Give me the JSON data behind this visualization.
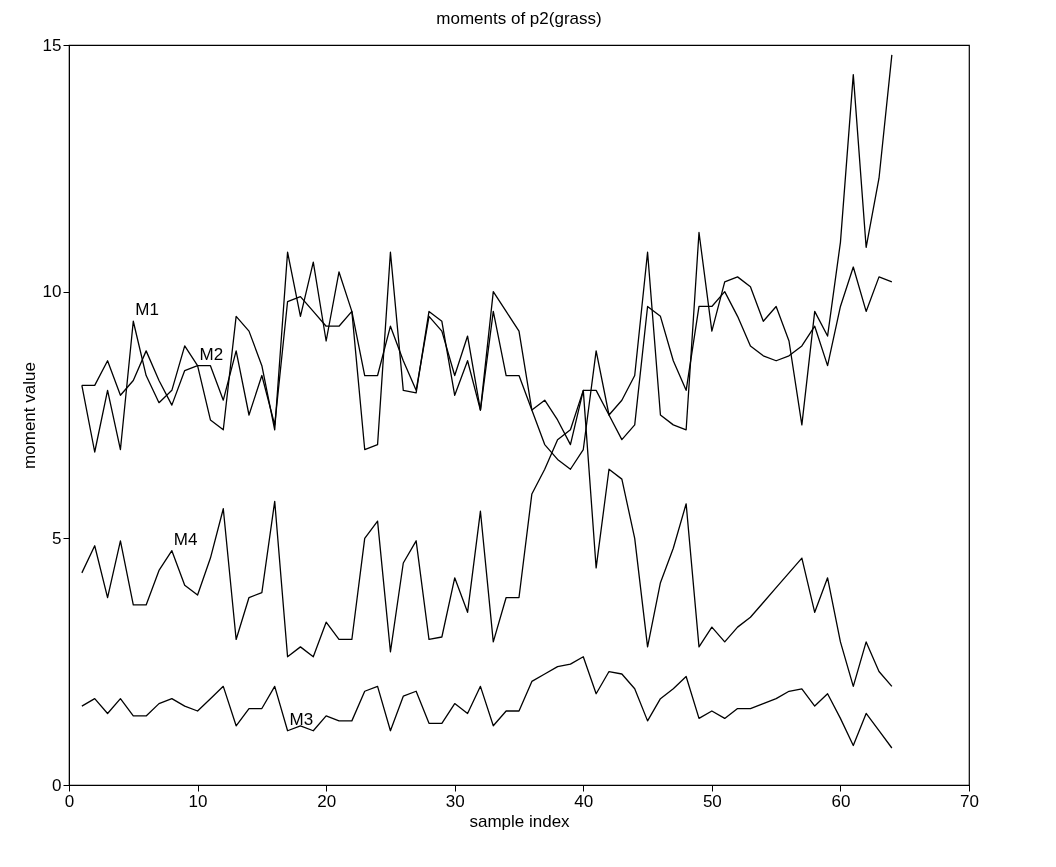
{
  "chart_data": {
    "type": "line",
    "title": "moments of p2(grass)",
    "xlabel": "sample index",
    "ylabel": "moment value",
    "x": [
      1,
      2,
      3,
      4,
      5,
      6,
      7,
      8,
      9,
      10,
      11,
      12,
      13,
      14,
      15,
      16,
      17,
      18,
      19,
      20,
      21,
      22,
      23,
      24,
      25,
      26,
      27,
      28,
      29,
      30,
      31,
      32,
      33,
      34,
      35,
      36,
      37,
      38,
      39,
      40,
      41,
      42,
      43,
      44,
      45,
      46,
      47,
      48,
      49,
      50,
      51,
      52,
      53,
      54,
      55,
      56,
      57,
      58,
      59,
      60,
      61,
      62,
      63,
      64
    ],
    "series": [
      {
        "name": "M1",
        "color": "#000000",
        "values": [
          8.1,
          6.75,
          8.0,
          6.8,
          9.4,
          8.3,
          7.75,
          8.0,
          8.9,
          8.5,
          7.4,
          7.2,
          9.5,
          9.2,
          8.5,
          7.2,
          10.8,
          9.5,
          10.6,
          9.0,
          10.4,
          9.6,
          6.8,
          6.9,
          10.8,
          8.0,
          7.95,
          9.6,
          9.4,
          7.9,
          8.6,
          7.6,
          10.0,
          9.6,
          9.2,
          7.6,
          6.9,
          6.6,
          6.4,
          6.8,
          8.8,
          7.5,
          7.8,
          8.3,
          10.8,
          7.5,
          7.3,
          7.2,
          11.2,
          9.2,
          10.2,
          10.3,
          10.1,
          9.4,
          9.7,
          9.0,
          7.3,
          9.6,
          9.1,
          11.0,
          14.4,
          10.9,
          12.3,
          14.8
        ]
      },
      {
        "name": "M2",
        "color": "#000000",
        "values": [
          8.1,
          8.1,
          8.6,
          7.9,
          8.2,
          8.8,
          8.2,
          7.7,
          8.4,
          8.5,
          8.5,
          7.8,
          8.8,
          7.5,
          8.3,
          7.3,
          9.8,
          9.9,
          9.6,
          9.3,
          9.3,
          9.6,
          8.3,
          8.3,
          9.3,
          8.6,
          8.0,
          9.5,
          9.2,
          8.3,
          9.1,
          7.6,
          9.6,
          8.3,
          8.3,
          7.6,
          7.8,
          7.4,
          6.9,
          8.0,
          8.0,
          7.5,
          7.0,
          7.3,
          9.7,
          9.5,
          8.6,
          8.0,
          9.7,
          9.7,
          10.0,
          9.5,
          8.9,
          8.7,
          8.6,
          8.7,
          8.9,
          9.3,
          8.5,
          9.7,
          10.5,
          9.6,
          10.3,
          10.2
        ]
      },
      {
        "name": "M3",
        "color": "#000000",
        "values": [
          1.6,
          1.75,
          1.45,
          1.75,
          1.4,
          1.4,
          1.65,
          1.75,
          1.6,
          1.5,
          1.75,
          2.0,
          1.2,
          1.55,
          1.55,
          2.0,
          1.1,
          1.2,
          1.1,
          1.4,
          1.3,
          1.3,
          1.9,
          2.0,
          1.1,
          1.8,
          1.9,
          1.25,
          1.25,
          1.65,
          1.45,
          2.0,
          1.2,
          1.5,
          1.5,
          2.1,
          2.25,
          2.4,
          2.45,
          2.6,
          1.85,
          2.3,
          2.25,
          1.95,
          1.3,
          1.75,
          1.95,
          2.2,
          1.35,
          1.5,
          1.35,
          1.55,
          1.55,
          1.65,
          1.75,
          1.9,
          1.95,
          1.6,
          1.85,
          1.35,
          0.8,
          1.45,
          1.1,
          0.75
        ]
      },
      {
        "name": "M4",
        "color": "#000000",
        "values": [
          4.3,
          4.85,
          3.8,
          4.95,
          3.65,
          3.65,
          4.35,
          4.75,
          4.05,
          3.85,
          4.6,
          5.6,
          2.95,
          3.8,
          3.9,
          5.75,
          2.6,
          2.8,
          2.6,
          3.3,
          2.95,
          2.95,
          5.0,
          5.35,
          2.7,
          4.5,
          4.95,
          2.95,
          3.0,
          4.2,
          3.5,
          5.55,
          2.9,
          3.8,
          3.8,
          5.9,
          6.4,
          7.0,
          7.2,
          8.0,
          4.4,
          6.4,
          6.2,
          5.0,
          2.8,
          4.1,
          4.8,
          5.7,
          2.8,
          3.2,
          2.9,
          3.2,
          3.4,
          3.7,
          4.0,
          4.3,
          4.6,
          3.5,
          4.2,
          2.9,
          2.0,
          2.9,
          2.3,
          2.0
        ]
      }
    ],
    "xlim": [
      0,
      70
    ],
    "xticks": [
      0,
      10,
      20,
      30,
      40,
      50,
      60,
      70
    ],
    "ylim": [
      0,
      15
    ],
    "yticks": [
      0,
      5,
      10,
      15
    ]
  }
}
